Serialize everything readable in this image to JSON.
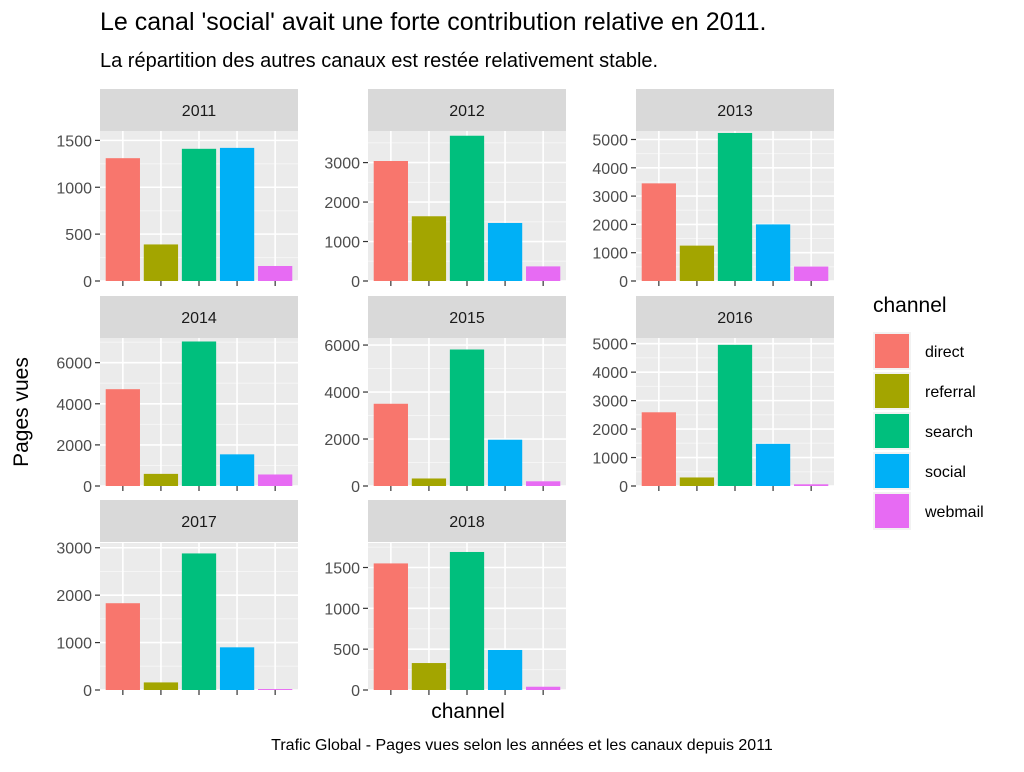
{
  "chart_data": {
    "type": "bar",
    "facet_by": "year",
    "title": "Le canal 'social' avait une forte contribution relative en 2011.",
    "subtitle": "La répartition des autres canaux est restée relativement stable.",
    "caption": "Trafic Global - Pages vues selon les années et les canaux depuis 2011",
    "xlabel": "channel",
    "ylabel": "Pages vues",
    "categories": [
      "direct",
      "referral",
      "search",
      "social",
      "webmail"
    ],
    "x_tick_labels_shown": false,
    "colors": {
      "direct": "#F8766D",
      "referral": "#A3A500",
      "search": "#00BF7D",
      "social": "#00B0F6",
      "webmail": "#E76BF3"
    },
    "panel_background": "#EBEBEB",
    "strip_background": "#D9D9D9",
    "grid": true,
    "legend": {
      "title": "channel",
      "position": "right",
      "entries": [
        "direct",
        "referral",
        "search",
        "social",
        "webmail"
      ]
    },
    "facets": [
      {
        "label": "2011",
        "ylim": [
          0,
          1600
        ],
        "yticks": [
          0,
          500,
          1000,
          1500
        ],
        "values": [
          1310,
          390,
          1410,
          1420,
          160
        ]
      },
      {
        "label": "2012",
        "ylim": [
          0,
          3800
        ],
        "yticks": [
          0,
          1000,
          2000,
          3000
        ],
        "values": [
          3040,
          1640,
          3680,
          1470,
          370
        ]
      },
      {
        "label": "2013",
        "ylim": [
          0,
          5300
        ],
        "yticks": [
          0,
          1000,
          2000,
          3000,
          4000,
          5000
        ],
        "values": [
          3450,
          1250,
          5230,
          2000,
          510
        ]
      },
      {
        "label": "2014",
        "ylim": [
          0,
          7200
        ],
        "yticks": [
          0,
          2000,
          4000,
          6000
        ],
        "values": [
          4710,
          590,
          7030,
          1540,
          560
        ]
      },
      {
        "label": "2015",
        "ylim": [
          0,
          6300
        ],
        "yticks": [
          0,
          2000,
          4000,
          6000
        ],
        "values": [
          3500,
          320,
          5810,
          1970,
          200
        ]
      },
      {
        "label": "2016",
        "ylim": [
          0,
          5200
        ],
        "yticks": [
          0,
          1000,
          2000,
          3000,
          4000,
          5000
        ],
        "values": [
          2590,
          300,
          4960,
          1480,
          60
        ]
      },
      {
        "label": "2017",
        "ylim": [
          0,
          3100
        ],
        "yticks": [
          0,
          1000,
          2000,
          3000
        ],
        "values": [
          1830,
          160,
          2880,
          900,
          20
        ]
      },
      {
        "label": "2018",
        "ylim": [
          0,
          1800
        ],
        "yticks": [
          0,
          500,
          1000,
          1500
        ],
        "values": [
          1550,
          330,
          1690,
          490,
          40
        ]
      }
    ]
  }
}
